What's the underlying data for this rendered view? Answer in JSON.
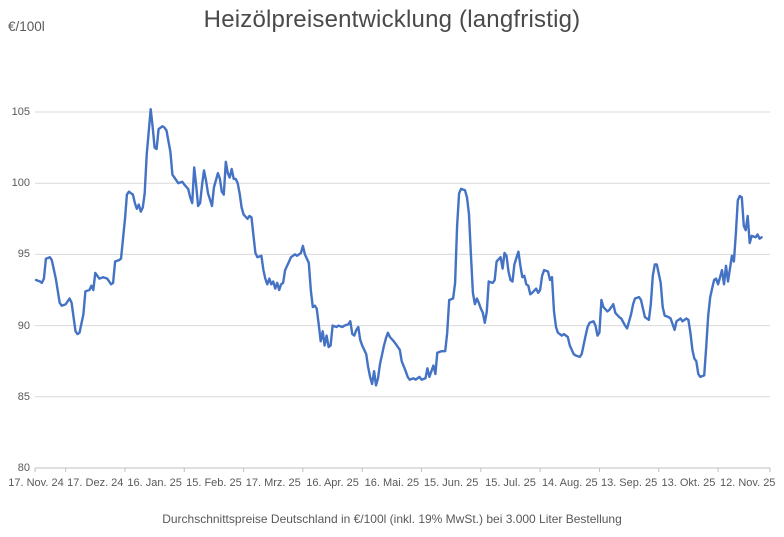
{
  "title": "Heizölpreisentwicklung (langfristig)",
  "y_unit_label": "€/100l",
  "footer": "Durchschnittspreise Deutschland in €/100l (inkl. 19% MwSt.) bei 3.000 Liter Bestellung",
  "colors": {
    "line": "#4472C4",
    "grid": "#D9D9D9",
    "axis": "#BFBFBF",
    "text": "#595959",
    "title": "#4A4A4A"
  },
  "chart_data": {
    "type": "line",
    "title": "Heizölpreisentwicklung (langfristig)",
    "ylabel": "€/100l",
    "xlabel": "",
    "ylim": [
      80,
      105
    ],
    "yticks": [
      80,
      85,
      90,
      95,
      100,
      105
    ],
    "grid": "horizontal-only",
    "legend": "none",
    "x_tick_labels": [
      "17. Nov. 24",
      "17. Dez. 24",
      "16. Jan. 25",
      "15. Feb. 25",
      "17. Mrz. 25",
      "16. Apr. 25",
      "16. Mai. 25",
      "15. Jun. 25",
      "15. Jul. 25",
      "14. Aug. 25",
      "13. Sep. 25",
      "13. Okt. 25",
      "12. Nov. 25"
    ],
    "x_tick_days": [
      0,
      30,
      60,
      90,
      120,
      150,
      180,
      210,
      240,
      270,
      300,
      330,
      360
    ],
    "points": [
      [
        0,
        93.2
      ],
      [
        2,
        93.1
      ],
      [
        3,
        93.0
      ],
      [
        4,
        93.3
      ],
      [
        5,
        94.7
      ],
      [
        7,
        94.8
      ],
      [
        8,
        94.6
      ],
      [
        10,
        93.3
      ],
      [
        12,
        91.6
      ],
      [
        13,
        91.4
      ],
      [
        15,
        91.5
      ],
      [
        17,
        91.9
      ],
      [
        18,
        91.6
      ],
      [
        20,
        89.6
      ],
      [
        21,
        89.4
      ],
      [
        22,
        89.5
      ],
      [
        24,
        90.8
      ],
      [
        25,
        92.4
      ],
      [
        27,
        92.5
      ],
      [
        28,
        92.8
      ],
      [
        29,
        92.5
      ],
      [
        30,
        93.7
      ],
      [
        32,
        93.3
      ],
      [
        34,
        93.4
      ],
      [
        36,
        93.3
      ],
      [
        38,
        92.9
      ],
      [
        39,
        93.0
      ],
      [
        40,
        94.5
      ],
      [
        42,
        94.6
      ],
      [
        43,
        94.7
      ],
      [
        45,
        97.5
      ],
      [
        46,
        99.2
      ],
      [
        47,
        99.4
      ],
      [
        49,
        99.2
      ],
      [
        50,
        98.6
      ],
      [
        51,
        98.2
      ],
      [
        52,
        98.5
      ],
      [
        53,
        98.0
      ],
      [
        54,
        98.3
      ],
      [
        55,
        99.3
      ],
      [
        56,
        102.0
      ],
      [
        58,
        105.2
      ],
      [
        59,
        104.0
      ],
      [
        60,
        102.5
      ],
      [
        61,
        102.4
      ],
      [
        62,
        103.8
      ],
      [
        64,
        104.0
      ],
      [
        65,
        103.9
      ],
      [
        66,
        103.7
      ],
      [
        68,
        102.2
      ],
      [
        69,
        100.6
      ],
      [
        70,
        100.4
      ],
      [
        72,
        100.0
      ],
      [
        74,
        100.1
      ],
      [
        75,
        99.9
      ],
      [
        77,
        99.6
      ],
      [
        78,
        99.0
      ],
      [
        79,
        98.6
      ],
      [
        80,
        101.1
      ],
      [
        81,
        99.9
      ],
      [
        82,
        98.4
      ],
      [
        83,
        98.6
      ],
      [
        84,
        99.9
      ],
      [
        85,
        100.9
      ],
      [
        86,
        100.2
      ],
      [
        87,
        99.3
      ],
      [
        89,
        98.4
      ],
      [
        90,
        99.7
      ],
      [
        92,
        100.7
      ],
      [
        93,
        100.3
      ],
      [
        94,
        99.4
      ],
      [
        95,
        99.2
      ],
      [
        96,
        101.5
      ],
      [
        97,
        100.7
      ],
      [
        98,
        100.4
      ],
      [
        99,
        101.0
      ],
      [
        100,
        100.3
      ],
      [
        101,
        100.3
      ],
      [
        102,
        100.0
      ],
      [
        103,
        99.3
      ],
      [
        104,
        98.3
      ],
      [
        105,
        97.8
      ],
      [
        107,
        97.5
      ],
      [
        108,
        97.7
      ],
      [
        109,
        97.6
      ],
      [
        110,
        96.3
      ],
      [
        111,
        95.1
      ],
      [
        112,
        94.8
      ],
      [
        114,
        94.9
      ],
      [
        115,
        93.9
      ],
      [
        116,
        93.3
      ],
      [
        117,
        92.9
      ],
      [
        118,
        93.3
      ],
      [
        119,
        92.9
      ],
      [
        120,
        93.1
      ],
      [
        121,
        92.6
      ],
      [
        122,
        93.0
      ],
      [
        123,
        92.5
      ],
      [
        124,
        92.9
      ],
      [
        125,
        93.0
      ],
      [
        126,
        93.9
      ],
      [
        128,
        94.5
      ],
      [
        129,
        94.8
      ],
      [
        131,
        95.0
      ],
      [
        132,
        94.9
      ],
      [
        134,
        95.1
      ],
      [
        135,
        95.6
      ],
      [
        136,
        95.0
      ],
      [
        138,
        94.4
      ],
      [
        139,
        92.5
      ],
      [
        140,
        91.3
      ],
      [
        141,
        91.4
      ],
      [
        142,
        91.2
      ],
      [
        143,
        90.1
      ],
      [
        144,
        88.9
      ],
      [
        145,
        89.6
      ],
      [
        146,
        88.6
      ],
      [
        147,
        89.3
      ],
      [
        148,
        88.5
      ],
      [
        149,
        88.6
      ],
      [
        150,
        90.0
      ],
      [
        152,
        89.9
      ],
      [
        153,
        90.0
      ],
      [
        155,
        89.9
      ],
      [
        156,
        90.0
      ],
      [
        158,
        90.1
      ],
      [
        159,
        90.3
      ],
      [
        160,
        89.4
      ],
      [
        161,
        89.3
      ],
      [
        162,
        89.7
      ],
      [
        163,
        89.9
      ],
      [
        164,
        89.0
      ],
      [
        165,
        88.6
      ],
      [
        166,
        88.3
      ],
      [
        167,
        88.0
      ],
      [
        168,
        87.1
      ],
      [
        169,
        86.4
      ],
      [
        170,
        85.9
      ],
      [
        171,
        86.8
      ],
      [
        172,
        85.8
      ],
      [
        173,
        86.3
      ],
      [
        174,
        87.3
      ],
      [
        176,
        88.6
      ],
      [
        177,
        89.1
      ],
      [
        178,
        89.5
      ],
      [
        179,
        89.2
      ],
      [
        181,
        88.9
      ],
      [
        182,
        88.7
      ],
      [
        184,
        88.3
      ],
      [
        185,
        87.5
      ],
      [
        187,
        86.8
      ],
      [
        188,
        86.4
      ],
      [
        189,
        86.2
      ],
      [
        191,
        86.3
      ],
      [
        192,
        86.2
      ],
      [
        194,
        86.4
      ],
      [
        195,
        86.2
      ],
      [
        197,
        86.3
      ],
      [
        198,
        87.0
      ],
      [
        199,
        86.4
      ],
      [
        201,
        87.2
      ],
      [
        202,
        86.6
      ],
      [
        203,
        88.1
      ],
      [
        205,
        88.2
      ],
      [
        207,
        88.2
      ],
      [
        208,
        89.5
      ],
      [
        209,
        91.8
      ],
      [
        211,
        91.9
      ],
      [
        212,
        93.0
      ],
      [
        213,
        97.0
      ],
      [
        214,
        99.3
      ],
      [
        215,
        99.6
      ],
      [
        217,
        99.5
      ],
      [
        218,
        99.0
      ],
      [
        219,
        97.8
      ],
      [
        220,
        95.0
      ],
      [
        221,
        92.3
      ],
      [
        222,
        91.5
      ],
      [
        223,
        91.9
      ],
      [
        224,
        91.6
      ],
      [
        225,
        91.2
      ],
      [
        226,
        90.9
      ],
      [
        227,
        90.2
      ],
      [
        228,
        91.0
      ],
      [
        229,
        93.1
      ],
      [
        231,
        93.0
      ],
      [
        232,
        93.2
      ],
      [
        233,
        94.5
      ],
      [
        235,
        94.8
      ],
      [
        236,
        94.0
      ],
      [
        237,
        95.1
      ],
      [
        238,
        94.9
      ],
      [
        239,
        93.8
      ],
      [
        240,
        93.2
      ],
      [
        241,
        93.1
      ],
      [
        242,
        94.3
      ],
      [
        244,
        95.2
      ],
      [
        245,
        94.2
      ],
      [
        246,
        93.4
      ],
      [
        247,
        93.5
      ],
      [
        248,
        92.9
      ],
      [
        249,
        92.8
      ],
      [
        250,
        92.2
      ],
      [
        251,
        92.3
      ],
      [
        253,
        92.6
      ],
      [
        254,
        92.3
      ],
      [
        255,
        92.5
      ],
      [
        256,
        93.5
      ],
      [
        257,
        93.9
      ],
      [
        259,
        93.8
      ],
      [
        260,
        93.2
      ],
      [
        261,
        93.4
      ],
      [
        262,
        91.0
      ],
      [
        263,
        89.9
      ],
      [
        264,
        89.5
      ],
      [
        266,
        89.3
      ],
      [
        267,
        89.4
      ],
      [
        269,
        89.2
      ],
      [
        270,
        88.6
      ],
      [
        272,
        88.0
      ],
      [
        273,
        87.9
      ],
      [
        275,
        87.8
      ],
      [
        276,
        88.0
      ],
      [
        278,
        89.3
      ],
      [
        279,
        89.9
      ],
      [
        280,
        90.2
      ],
      [
        282,
        90.3
      ],
      [
        283,
        90.0
      ],
      [
        284,
        89.3
      ],
      [
        285,
        89.5
      ],
      [
        286,
        91.8
      ],
      [
        287,
        91.3
      ],
      [
        289,
        91.0
      ],
      [
        290,
        91.1
      ],
      [
        292,
        91.5
      ],
      [
        293,
        90.9
      ],
      [
        295,
        90.6
      ],
      [
        296,
        90.5
      ],
      [
        298,
        90.0
      ],
      [
        299,
        89.8
      ],
      [
        301,
        90.8
      ],
      [
        302,
        91.5
      ],
      [
        303,
        91.9
      ],
      [
        305,
        92.0
      ],
      [
        306,
        91.8
      ],
      [
        308,
        90.6
      ],
      [
        310,
        90.4
      ],
      [
        311,
        91.5
      ],
      [
        312,
        93.5
      ],
      [
        313,
        94.3
      ],
      [
        314,
        94.3
      ],
      [
        316,
        93.0
      ],
      [
        317,
        91.3
      ],
      [
        318,
        90.7
      ],
      [
        320,
        90.6
      ],
      [
        321,
        90.5
      ],
      [
        323,
        89.7
      ],
      [
        324,
        90.3
      ],
      [
        326,
        90.5
      ],
      [
        327,
        90.3
      ],
      [
        329,
        90.5
      ],
      [
        330,
        90.4
      ],
      [
        331,
        89.5
      ],
      [
        332,
        88.3
      ],
      [
        333,
        87.7
      ],
      [
        334,
        87.5
      ],
      [
        335,
        86.6
      ],
      [
        336,
        86.4
      ],
      [
        338,
        86.5
      ],
      [
        339,
        88.5
      ],
      [
        340,
        90.7
      ],
      [
        341,
        92.0
      ],
      [
        342,
        92.6
      ],
      [
        343,
        93.2
      ],
      [
        344,
        93.3
      ],
      [
        345,
        92.9
      ],
      [
        347,
        93.9
      ],
      [
        348,
        92.9
      ],
      [
        349,
        94.2
      ],
      [
        350,
        93.1
      ],
      [
        352,
        94.9
      ],
      [
        353,
        94.5
      ],
      [
        354,
        96.5
      ],
      [
        355,
        98.8
      ],
      [
        356,
        99.1
      ],
      [
        357,
        99.0
      ],
      [
        358,
        97.0
      ],
      [
        359,
        96.7
      ],
      [
        360,
        97.7
      ],
      [
        361,
        95.8
      ],
      [
        362,
        96.3
      ],
      [
        364,
        96.2
      ],
      [
        365,
        96.4
      ],
      [
        366,
        96.1
      ],
      [
        367,
        96.2
      ]
    ]
  }
}
